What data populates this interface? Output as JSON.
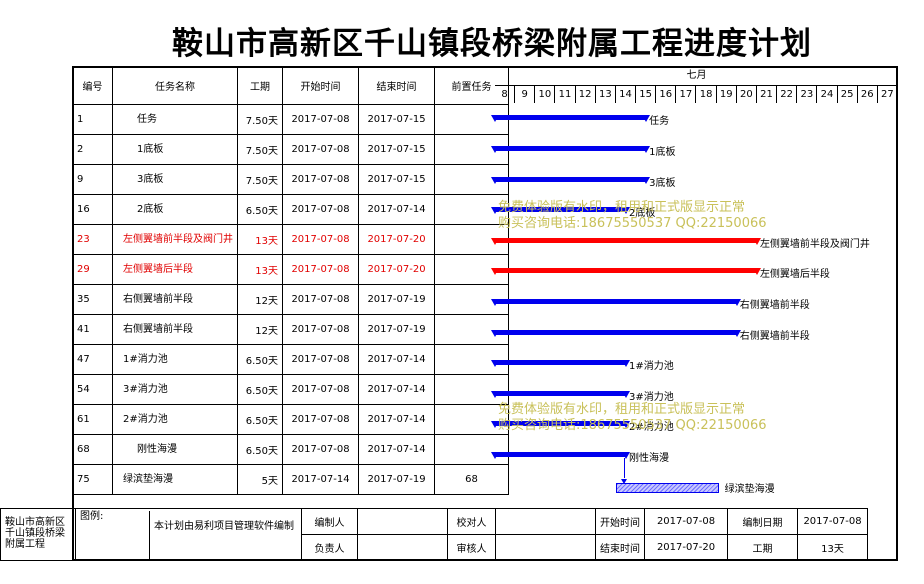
{
  "title": "鞍山市高新区千山镇段桥梁附属工程进度计划",
  "headers": {
    "id": "编号",
    "name": "任务名称",
    "duration": "工期",
    "start": "开始时间",
    "end": "结束时间",
    "pred": "前置任务"
  },
  "month": "七月",
  "days": [
    "8",
    "9",
    "10",
    "11",
    "12",
    "13",
    "14",
    "15",
    "16",
    "17",
    "18",
    "19",
    "20",
    "21",
    "22",
    "23",
    "24",
    "25",
    "26",
    "27"
  ],
  "tasks": [
    {
      "id": "1",
      "name": "任务",
      "duration": "7.50天",
      "start": "2017-07-08",
      "end": "2017-07-15",
      "pred": "",
      "color": "blue",
      "label": "任务"
    },
    {
      "id": "2",
      "name": "1底板",
      "duration": "7.50天",
      "start": "2017-07-08",
      "end": "2017-07-15",
      "pred": "",
      "color": "blue",
      "label": "1底板"
    },
    {
      "id": "9",
      "name": "3底板",
      "duration": "7.50天",
      "start": "2017-07-08",
      "end": "2017-07-15",
      "pred": "",
      "color": "blue",
      "label": "3底板"
    },
    {
      "id": "16",
      "name": "2底板",
      "duration": "6.50天",
      "start": "2017-07-08",
      "end": "2017-07-14",
      "pred": "",
      "color": "blue",
      "label": "2底板"
    },
    {
      "id": "23",
      "name": "左侧翼墙前半段及阀门井",
      "duration": "13天",
      "start": "2017-07-08",
      "end": "2017-07-20",
      "pred": "",
      "color": "red",
      "label": "左侧翼墙前半段及阀门井"
    },
    {
      "id": "29",
      "name": "左侧翼墙后半段",
      "duration": "13天",
      "start": "2017-07-08",
      "end": "2017-07-20",
      "pred": "",
      "color": "red",
      "label": "左侧翼墙后半段"
    },
    {
      "id": "35",
      "name": "右侧翼墙前半段",
      "duration": "12天",
      "start": "2017-07-08",
      "end": "2017-07-19",
      "pred": "",
      "color": "blue",
      "label": "右侧翼墙前半段"
    },
    {
      "id": "41",
      "name": "右侧翼墙前半段",
      "duration": "12天",
      "start": "2017-07-08",
      "end": "2017-07-19",
      "pred": "",
      "color": "blue",
      "label": "右侧翼墙前半段"
    },
    {
      "id": "47",
      "name": "1#消力池",
      "duration": "6.50天",
      "start": "2017-07-08",
      "end": "2017-07-14",
      "pred": "",
      "color": "blue",
      "label": "1#消力池"
    },
    {
      "id": "54",
      "name": "3#消力池",
      "duration": "6.50天",
      "start": "2017-07-08",
      "end": "2017-07-14",
      "pred": "",
      "color": "blue",
      "label": "3#消力池"
    },
    {
      "id": "61",
      "name": "2#消力池",
      "duration": "6.50天",
      "start": "2017-07-08",
      "end": "2017-07-14",
      "pred": "",
      "color": "blue",
      "label": "2#消力池"
    },
    {
      "id": "68",
      "name": "刚性海漫",
      "duration": "6.50天",
      "start": "2017-07-08",
      "end": "2017-07-14",
      "pred": "",
      "color": "blue",
      "label": "刚性海漫"
    },
    {
      "id": "75",
      "name": "绿滨垫海漫",
      "duration": "5天",
      "start": "2017-07-14",
      "end": "2017-07-19",
      "pred": "68",
      "color": "hatch",
      "label": "绿滨垫海漫"
    }
  ],
  "watermark": {
    "line1": "免费体验版有水印，租用和正式版显示正常",
    "line2": "购买咨询电话:18675550537 QQ:22150066"
  },
  "footer": {
    "project": "鞍山市高新区千山镇段桥梁附属工程",
    "legend": "图例:",
    "note": "本计划由易利项目管理软件编制",
    "compiler": "编制人",
    "checker": "校对人",
    "owner": "负责人",
    "reviewer": "审核人",
    "start_label": "开始时间",
    "start_value": "2017-07-08",
    "date_label": "编制日期",
    "date_value": "2017-07-08",
    "end_label": "结束时间",
    "end_value": "2017-07-20",
    "duration_label": "工期",
    "duration_value": "13天"
  }
}
